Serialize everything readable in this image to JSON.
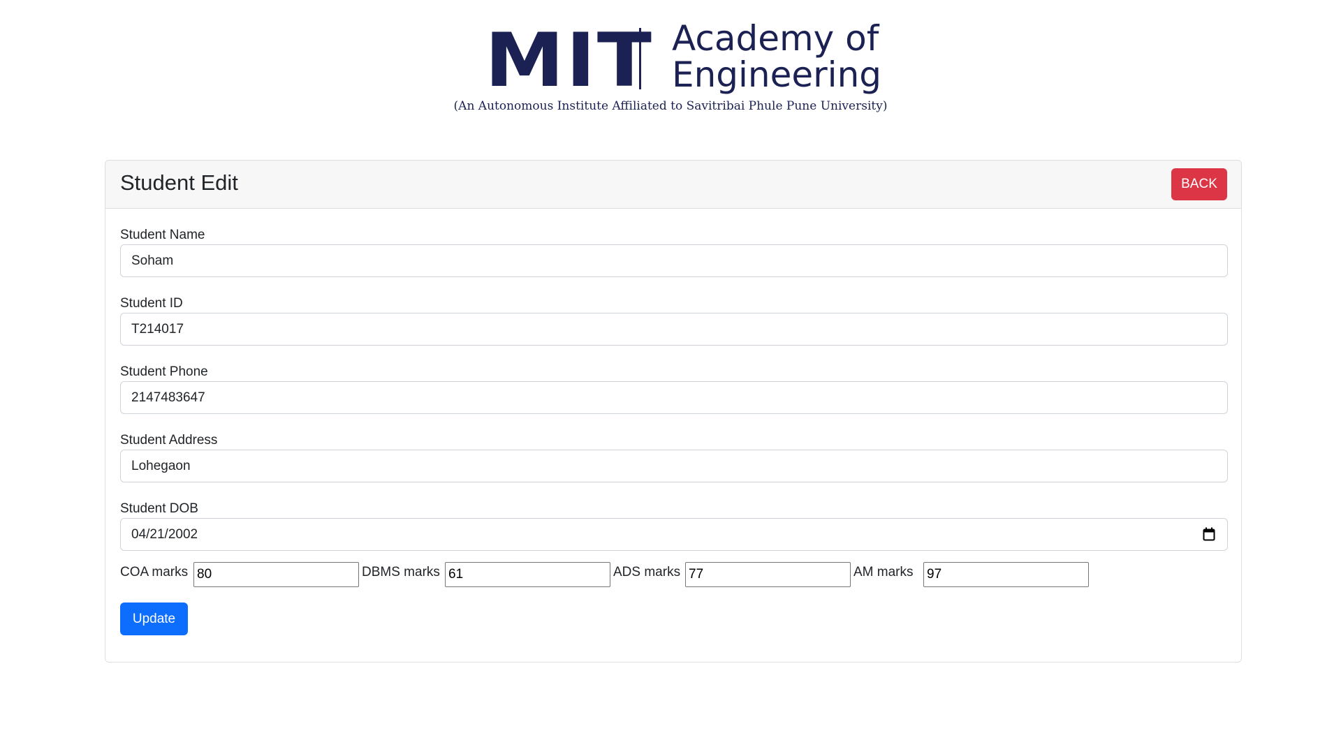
{
  "logo": {
    "mit": "MIT",
    "line1": "Academy of",
    "line2": "Engineering",
    "subtitle": "(An Autonomous Institute Affiliated to Savitribai Phule Pune University)",
    "color": "#1b2152"
  },
  "card": {
    "title": "Student Edit",
    "back_label": "BACK"
  },
  "form": {
    "fields": [
      {
        "label": "Student Name",
        "value": "Soham"
      },
      {
        "label": "Student ID",
        "value": "T214017"
      },
      {
        "label": "Student Phone",
        "value": "2147483647"
      },
      {
        "label": "Student Address",
        "value": "Lohegaon"
      },
      {
        "label": "Student DOB",
        "value": "04/21/2002",
        "icon": "calendar-icon"
      }
    ],
    "marks": [
      {
        "label": "COA marks",
        "value": "80"
      },
      {
        "label": "DBMS marks",
        "value": "61"
      },
      {
        "label": "ADS marks",
        "value": "77"
      },
      {
        "label": "AM marks",
        "value": "97"
      }
    ],
    "update_label": "Update"
  },
  "colors": {
    "back_button": "#dc3545",
    "update_button": "#0d6efd",
    "header_bg": "#f7f7f7"
  }
}
